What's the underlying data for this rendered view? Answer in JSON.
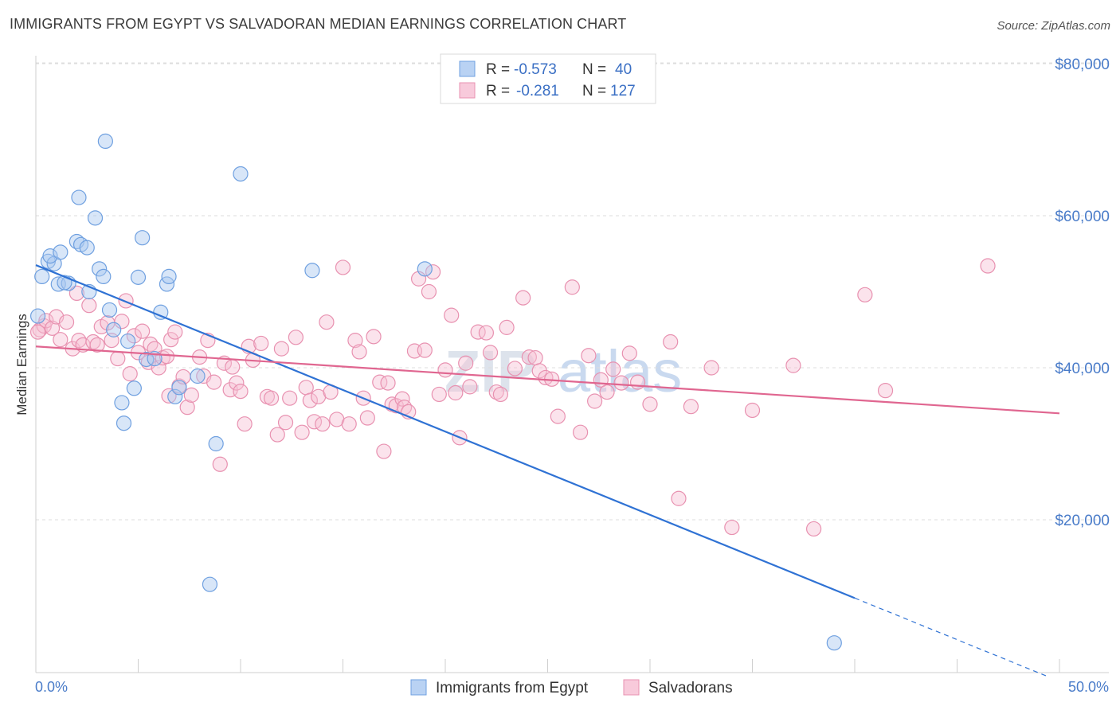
{
  "chart_data": {
    "type": "scatter",
    "title": "IMMIGRANTS FROM EGYPT VS SALVADORAN MEDIAN EARNINGS CORRELATION CHART",
    "source": "Source: ZipAtlas.com",
    "ylabel": "Median Earnings",
    "xlim": [
      0,
      50
    ],
    "ylim": [
      0,
      85000
    ],
    "x_tick_labels": [
      "0.0%",
      "50.0%"
    ],
    "y_ticks": [
      {
        "value": 20000,
        "label": "$20,000"
      },
      {
        "value": 40000,
        "label": "$40,000"
      },
      {
        "value": 60000,
        "label": "$60,000"
      },
      {
        "value": 80000,
        "label": "$80,000"
      }
    ],
    "watermark": {
      "zip": "ZIP",
      "atlas": "atlas"
    },
    "legend": [
      {
        "r_label": "R =",
        "r_value": "-0.573",
        "n_label": "N =",
        "n_value": "40"
      },
      {
        "r_label": "R =",
        "r_value": "-0.281",
        "n_label": "N =",
        "n_value": "127"
      }
    ],
    "series": [
      {
        "name": "Immigrants from Egypt",
        "color": "#6fa0e0",
        "fill": "#a9c8ef",
        "line_color": "#2f72d4",
        "trend": {
          "x0": 0.0,
          "y0": 53500,
          "x1": 40.0,
          "y1": 9700,
          "dash_to_x": 49.5,
          "dash_to_y": -700
        },
        "points": [
          [
            0.3,
            52000
          ],
          [
            0.1,
            46800
          ],
          [
            0.6,
            54000
          ],
          [
            0.9,
            53700
          ],
          [
            0.7,
            54700
          ],
          [
            1.2,
            55200
          ],
          [
            1.1,
            51000
          ],
          [
            1.6,
            51100
          ],
          [
            1.4,
            51200
          ],
          [
            2.0,
            56600
          ],
          [
            2.2,
            56200
          ],
          [
            2.5,
            55800
          ],
          [
            2.1,
            62400
          ],
          [
            2.9,
            59700
          ],
          [
            3.1,
            53000
          ],
          [
            3.3,
            52000
          ],
          [
            2.6,
            50000
          ],
          [
            3.4,
            69800
          ],
          [
            3.6,
            47600
          ],
          [
            3.8,
            45000
          ],
          [
            4.2,
            35400
          ],
          [
            4.5,
            43500
          ],
          [
            4.3,
            32700
          ],
          [
            4.8,
            37300
          ],
          [
            5.0,
            51900
          ],
          [
            5.2,
            57100
          ],
          [
            5.4,
            41100
          ],
          [
            5.8,
            41200
          ],
          [
            6.1,
            47300
          ],
          [
            6.4,
            51000
          ],
          [
            6.5,
            52000
          ],
          [
            6.8,
            36200
          ],
          [
            7.0,
            37400
          ],
          [
            7.9,
            38900
          ],
          [
            8.5,
            11500
          ],
          [
            8.8,
            30000
          ],
          [
            10.0,
            65500
          ],
          [
            13.5,
            52800
          ],
          [
            19.0,
            53000
          ],
          [
            39.0,
            3800
          ]
        ]
      },
      {
        "name": "Salvadorans",
        "color": "#e891b0",
        "fill": "#f6c2d4",
        "line_color": "#e06690",
        "trend": {
          "x0": 0.0,
          "y0": 42800,
          "x1": 50.0,
          "y1": 34000
        },
        "points": [
          [
            0.2,
            45000
          ],
          [
            0.4,
            45500
          ],
          [
            0.5,
            46200
          ],
          [
            0.8,
            45200
          ],
          [
            1.0,
            46700
          ],
          [
            1.2,
            43700
          ],
          [
            1.5,
            46000
          ],
          [
            1.8,
            42500
          ],
          [
            2.0,
            49800
          ],
          [
            2.1,
            43600
          ],
          [
            2.3,
            43000
          ],
          [
            2.6,
            48200
          ],
          [
            2.8,
            43400
          ],
          [
            3.0,
            43000
          ],
          [
            3.2,
            45400
          ],
          [
            3.5,
            45900
          ],
          [
            3.7,
            43600
          ],
          [
            4.0,
            41200
          ],
          [
            4.2,
            46100
          ],
          [
            4.4,
            48800
          ],
          [
            4.6,
            39200
          ],
          [
            4.8,
            44200
          ],
          [
            5.0,
            42000
          ],
          [
            5.2,
            44800
          ],
          [
            5.5,
            40700
          ],
          [
            5.6,
            43100
          ],
          [
            5.8,
            42500
          ],
          [
            6.0,
            40000
          ],
          [
            6.2,
            41300
          ],
          [
            6.4,
            41500
          ],
          [
            6.5,
            36300
          ],
          [
            6.6,
            43700
          ],
          [
            6.8,
            44700
          ],
          [
            7.0,
            37600
          ],
          [
            7.2,
            38800
          ],
          [
            7.4,
            34800
          ],
          [
            7.6,
            36400
          ],
          [
            8.0,
            41400
          ],
          [
            8.2,
            38900
          ],
          [
            8.4,
            43600
          ],
          [
            8.7,
            38100
          ],
          [
            9.0,
            27300
          ],
          [
            9.2,
            40600
          ],
          [
            9.5,
            37100
          ],
          [
            9.6,
            40100
          ],
          [
            9.8,
            38000
          ],
          [
            10.0,
            36900
          ],
          [
            10.2,
            32600
          ],
          [
            10.4,
            42800
          ],
          [
            10.6,
            41000
          ],
          [
            11.0,
            43200
          ],
          [
            11.3,
            36200
          ],
          [
            11.5,
            36000
          ],
          [
            11.8,
            31200
          ],
          [
            12.0,
            42500
          ],
          [
            12.2,
            32800
          ],
          [
            12.4,
            36000
          ],
          [
            12.7,
            44000
          ],
          [
            13.0,
            31500
          ],
          [
            13.2,
            37400
          ],
          [
            13.4,
            35700
          ],
          [
            13.6,
            32900
          ],
          [
            13.8,
            36200
          ],
          [
            14.0,
            32600
          ],
          [
            14.2,
            46000
          ],
          [
            14.4,
            36800
          ],
          [
            14.7,
            33200
          ],
          [
            15.0,
            53200
          ],
          [
            15.3,
            32600
          ],
          [
            15.6,
            43600
          ],
          [
            15.8,
            42100
          ],
          [
            16.0,
            36000
          ],
          [
            16.2,
            33400
          ],
          [
            16.5,
            44100
          ],
          [
            16.8,
            38100
          ],
          [
            17.0,
            29000
          ],
          [
            17.2,
            38000
          ],
          [
            17.4,
            35200
          ],
          [
            17.6,
            35000
          ],
          [
            17.9,
            35900
          ],
          [
            18.0,
            34800
          ],
          [
            18.2,
            34200
          ],
          [
            18.5,
            42200
          ],
          [
            18.7,
            51700
          ],
          [
            19.0,
            42300
          ],
          [
            19.2,
            50000
          ],
          [
            19.4,
            52600
          ],
          [
            19.7,
            36500
          ],
          [
            20.0,
            39700
          ],
          [
            20.3,
            46900
          ],
          [
            20.5,
            36700
          ],
          [
            20.7,
            30800
          ],
          [
            21.0,
            40600
          ],
          [
            21.2,
            37500
          ],
          [
            21.6,
            44700
          ],
          [
            22.0,
            44600
          ],
          [
            22.2,
            42000
          ],
          [
            22.5,
            36800
          ],
          [
            22.7,
            36500
          ],
          [
            23.0,
            45300
          ],
          [
            23.4,
            39900
          ],
          [
            23.8,
            49200
          ],
          [
            24.1,
            41400
          ],
          [
            24.4,
            41300
          ],
          [
            24.6,
            39600
          ],
          [
            24.9,
            38700
          ],
          [
            25.2,
            38500
          ],
          [
            25.5,
            33600
          ],
          [
            26.2,
            50600
          ],
          [
            26.6,
            31500
          ],
          [
            27.0,
            41600
          ],
          [
            27.3,
            35600
          ],
          [
            27.6,
            38400
          ],
          [
            27.9,
            36800
          ],
          [
            28.2,
            39800
          ],
          [
            28.6,
            38000
          ],
          [
            29.0,
            41900
          ],
          [
            29.4,
            38100
          ],
          [
            30.0,
            35200
          ],
          [
            31.0,
            43400
          ],
          [
            31.4,
            22800
          ],
          [
            32.0,
            34900
          ],
          [
            33.0,
            40000
          ],
          [
            34.0,
            19000
          ],
          [
            35.0,
            34400
          ],
          [
            37.0,
            40300
          ],
          [
            38.0,
            18800
          ],
          [
            40.5,
            49600
          ],
          [
            41.5,
            37000
          ],
          [
            46.5,
            53400
          ],
          [
            0.1,
            44700
          ]
        ]
      }
    ]
  }
}
